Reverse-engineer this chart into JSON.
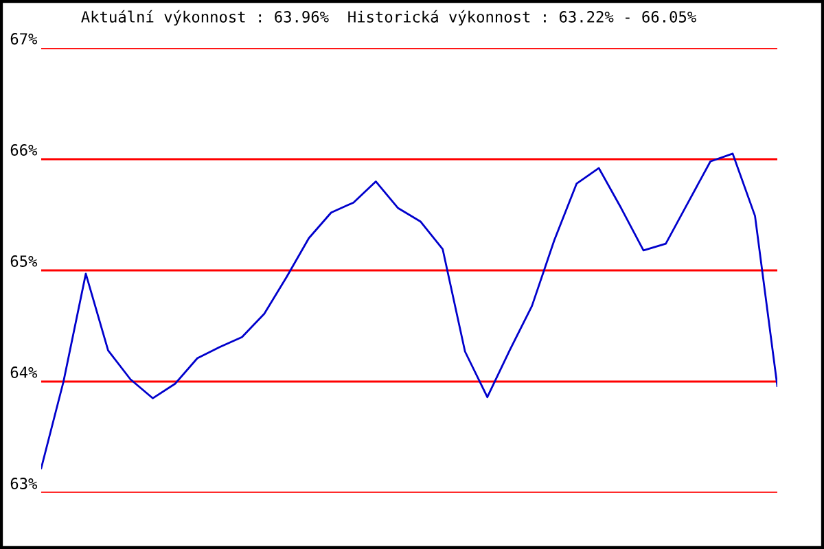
{
  "chart_data": {
    "type": "line",
    "title": "Aktuální výkonnost : 63.96%  Historická výkonnost : 63.22% - 66.05%",
    "categories": [
      null,
      null,
      null,
      null,
      null,
      null,
      null,
      null,
      null,
      null,
      null,
      null,
      null,
      null,
      null,
      null,
      null,
      null,
      null,
      null,
      null,
      null,
      null,
      null,
      null,
      null,
      null,
      null,
      null,
      null,
      null,
      null,
      null,
      null
    ],
    "series": [
      {
        "color": "#0000cc",
        "values": [
          63.22,
          64.0,
          64.97,
          64.28,
          64.02,
          63.85,
          63.98,
          64.21,
          64.31,
          64.4,
          64.61,
          64.94,
          65.29,
          65.52,
          65.61,
          65.8,
          65.56,
          65.44,
          65.19,
          64.27,
          63.86,
          64.28,
          64.68,
          65.27,
          65.78,
          65.92,
          65.56,
          65.18,
          65.24,
          65.61,
          65.98,
          66.05,
          65.49,
          63.96
        ]
      }
    ],
    "ylim": [
      63,
      67
    ],
    "yticks": [
      {
        "value": 63,
        "label": "63%"
      },
      {
        "value": 64,
        "label": "64%"
      },
      {
        "value": 65,
        "label": "65%"
      },
      {
        "value": 66,
        "label": "66%"
      },
      {
        "value": 67,
        "label": "67%"
      }
    ],
    "grid": "y",
    "legend": false,
    "marker": "none",
    "line_style": "solid"
  }
}
